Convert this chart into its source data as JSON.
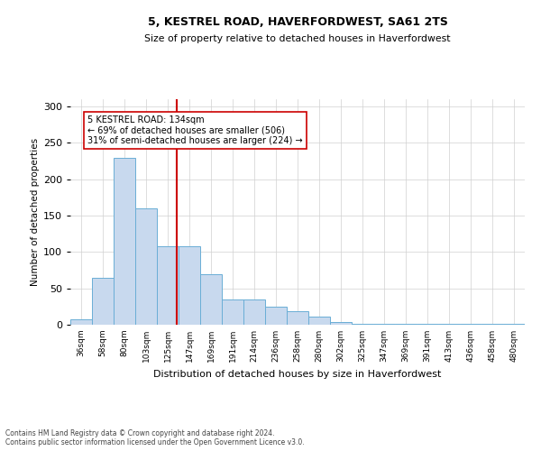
{
  "title1": "5, KESTREL ROAD, HAVERFORDWEST, SA61 2TS",
  "title2": "Size of property relative to detached houses in Haverfordwest",
  "xlabel": "Distribution of detached houses by size in Haverfordwest",
  "ylabel": "Number of detached properties",
  "categories": [
    "36sqm",
    "58sqm",
    "80sqm",
    "103sqm",
    "125sqm",
    "147sqm",
    "169sqm",
    "191sqm",
    "214sqm",
    "236sqm",
    "258sqm",
    "280sqm",
    "302sqm",
    "325sqm",
    "347sqm",
    "369sqm",
    "391sqm",
    "413sqm",
    "436sqm",
    "458sqm",
    "480sqm"
  ],
  "values": [
    8,
    65,
    230,
    160,
    108,
    108,
    70,
    35,
    35,
    25,
    18,
    11,
    4,
    1,
    1,
    1,
    1,
    1,
    1,
    1,
    1
  ],
  "bar_color": "#c8d9ee",
  "bar_edge_color": "#6aaed6",
  "vline_color": "#cc0000",
  "annotation_line1": "5 KESTREL ROAD: 134sqm",
  "annotation_line2": "← 69% of detached houses are smaller (506)",
  "annotation_line3": "31% of semi-detached houses are larger (224) →",
  "annotation_box_color": "#ffffff",
  "annotation_box_edge": "#cc0000",
  "ylim": [
    0,
    310
  ],
  "yticks": [
    0,
    50,
    100,
    150,
    200,
    250,
    300
  ],
  "footer": "Contains HM Land Registry data © Crown copyright and database right 2024.\nContains public sector information licensed under the Open Government Licence v3.0.",
  "bg_color": "#ffffff",
  "grid_color": "#d0d0d0"
}
